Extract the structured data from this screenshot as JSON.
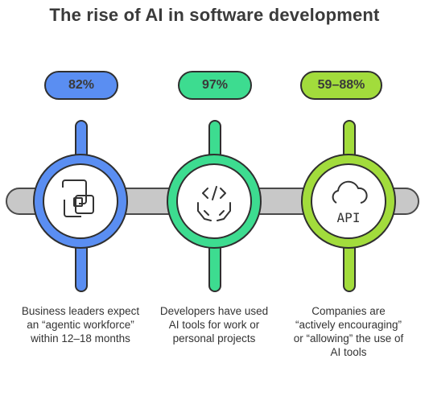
{
  "title": "The rise of AI in software development",
  "stats": [
    {
      "value": "82%",
      "description": "Business leaders expect an “agentic workforce” within 12–18 months",
      "color": "#5a8ef2",
      "icon": "duplicate-squares-icon"
    },
    {
      "value": "97%",
      "description": "Developers have used AI tools for work or personal projects",
      "color": "#3ddc90",
      "icon": "code-hands-icon"
    },
    {
      "value": "59–88%",
      "description": "Companies are “actively encouraging” or “allowing” the use of AI tools",
      "color": "#a2dc3c",
      "icon": "cloud-api-icon"
    }
  ],
  "icon_text": {
    "api": "API"
  },
  "colors": {
    "bar": "#c8c8c8",
    "text": "#333333"
  }
}
